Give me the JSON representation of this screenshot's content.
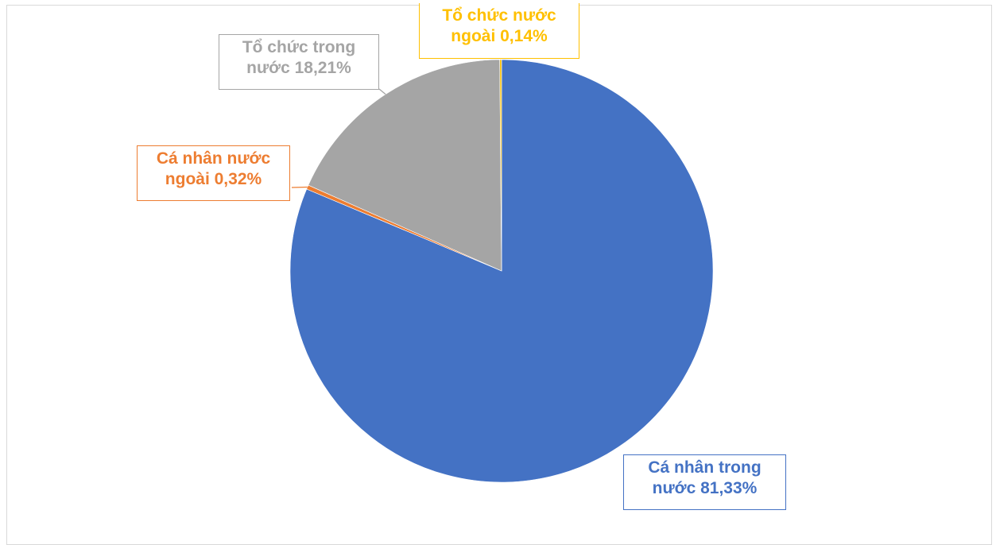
{
  "chart_data": {
    "type": "pie",
    "slices": [
      {
        "label": "Cá nhân trong nước 81,33%",
        "value": 81.33,
        "color": "#4472c4"
      },
      {
        "label": "Cá nhân nước ngoài 0,32%",
        "value": 0.32,
        "color": "#ed7d31"
      },
      {
        "label": "Tổ chức trong nước 18,21%",
        "value": 18.21,
        "color": "#a5a5a5"
      },
      {
        "label": "Tổ chức nước ngoài 0,14%",
        "value": 0.14,
        "color": "#ffc000"
      }
    ],
    "start": "12 o'clock",
    "direction": "clockwise",
    "legend": "none",
    "data_labels": "callout boxes"
  }
}
